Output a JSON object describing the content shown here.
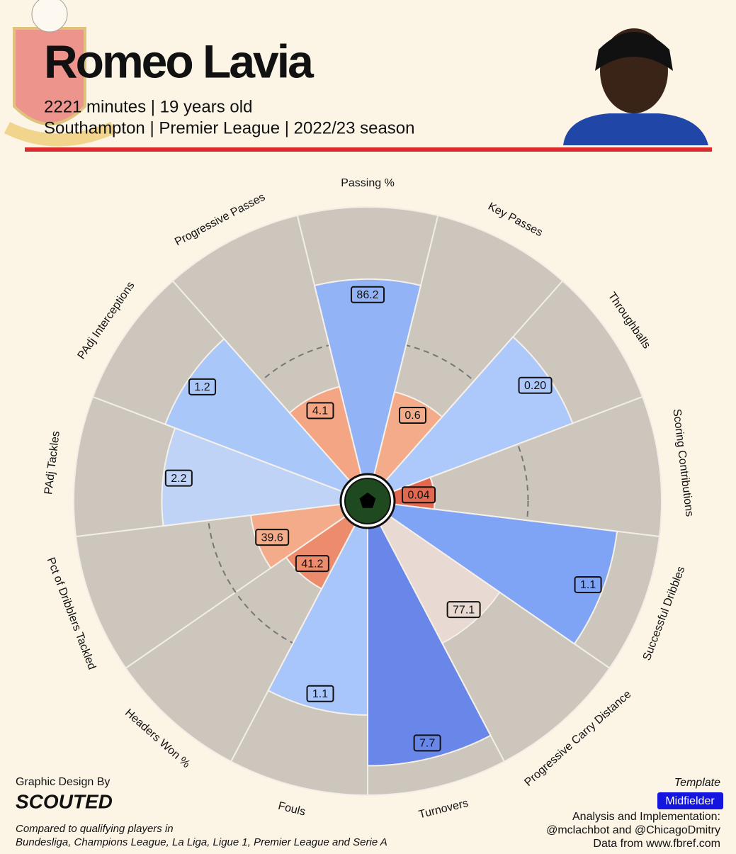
{
  "header": {
    "title": "Romeo Lavia",
    "line1": "2221 minutes | 19 years old",
    "line2": "Southampton | Premier League | 2022/23 season"
  },
  "chart_data": {
    "type": "pizza",
    "categories": [
      "Passing %",
      "Key Passes",
      "Throughballs",
      "Scoring Contributions",
      "Successful Dribbles",
      "Progressive Carry Distance",
      "Turnovers",
      "Fouls",
      "Headers Won %",
      "Pct of Dribblers Tackled",
      "PAdj Tackles",
      "PAdj Interceptions",
      "Progressive Passes"
    ],
    "percentiles": [
      73,
      32,
      72,
      15,
      84,
      50,
      89,
      70,
      27,
      34,
      67,
      71,
      34
    ],
    "stat_labels": [
      "86.2",
      "0.6",
      "0.20",
      "0.04",
      "1.1",
      "77.1",
      "7.7",
      "1.1",
      "41.2",
      "39.6",
      "2.2",
      "1.2",
      "4.1"
    ],
    "colors": [
      "#93b3f7",
      "#f4ab8a",
      "#adc8fa",
      "#e0694f",
      "#7fa3f5",
      "#e8d9d2",
      "#6887e8",
      "#a9c6fb",
      "#ed8c6c",
      "#f4ab8a",
      "#bfd3f6",
      "#aac7fa",
      "#f3a584"
    ],
    "rlim": [
      0,
      100
    ],
    "reference": 50
  },
  "footer": {
    "credit": "Graphic Design By",
    "brand": "SCOUTED",
    "note1": "Compared to qualifying players in",
    "note2": "Bundesliga, Champions League, La Liga, Ligue 1, Premier League and Serie A",
    "template_label": "Template",
    "template": "Midfielder",
    "analysis": "Analysis and Implementation:",
    "authors": "@mclachbot and @ChicagoDmitry",
    "source": "Data from www.fbref.com"
  }
}
